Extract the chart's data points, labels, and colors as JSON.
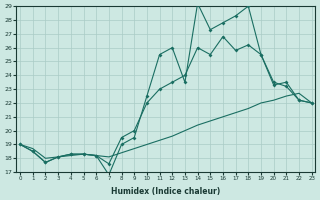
{
  "xlabel": "Humidex (Indice chaleur)",
  "xlim_min": -0.3,
  "xlim_max": 23.3,
  "ylim_min": 17,
  "ylim_max": 29,
  "bg_color": "#cde8e2",
  "line_color": "#1a6e62",
  "grid_color": "#aaccc6",
  "yticks": [
    17,
    18,
    19,
    20,
    21,
    22,
    23,
    24,
    25,
    26,
    27,
    28,
    29
  ],
  "xticks": [
    0,
    1,
    2,
    3,
    4,
    5,
    6,
    7,
    8,
    9,
    10,
    11,
    12,
    13,
    14,
    15,
    16,
    17,
    18,
    19,
    20,
    21,
    22,
    23
  ],
  "line1_x": [
    0,
    1,
    2,
    3,
    4,
    5,
    6,
    7,
    8,
    9,
    10,
    11,
    12,
    13,
    14,
    15,
    16,
    17,
    18,
    19,
    20,
    21,
    22,
    23
  ],
  "line1_y": [
    19.0,
    18.7,
    18.0,
    18.1,
    18.2,
    18.3,
    18.2,
    18.1,
    18.4,
    18.7,
    19.0,
    19.3,
    19.6,
    20.0,
    20.4,
    20.7,
    21.0,
    21.3,
    21.6,
    22.0,
    22.2,
    22.5,
    22.7,
    22.0
  ],
  "line2_x": [
    0,
    1,
    2,
    3,
    4,
    5,
    6,
    7,
    8,
    9,
    10,
    11,
    12,
    13,
    14,
    15,
    16,
    17,
    18,
    19,
    20,
    21,
    22,
    23
  ],
  "line2_y": [
    19.0,
    18.5,
    17.7,
    18.1,
    18.3,
    18.3,
    18.2,
    17.6,
    19.5,
    20.0,
    22.0,
    23.0,
    23.5,
    24.0,
    26.0,
    25.5,
    26.8,
    25.8,
    26.2,
    25.5,
    23.3,
    23.5,
    22.2,
    22.0
  ],
  "line3_x": [
    0,
    1,
    2,
    3,
    4,
    5,
    6,
    7,
    8,
    9,
    10,
    11,
    12,
    13,
    14,
    15,
    16,
    17,
    18,
    19,
    20,
    21,
    22,
    23
  ],
  "line3_y": [
    19.0,
    18.5,
    17.7,
    18.1,
    18.3,
    18.3,
    18.2,
    16.8,
    19.0,
    19.5,
    22.5,
    25.5,
    26.0,
    23.5,
    29.2,
    27.3,
    27.8,
    28.3,
    29.0,
    25.5,
    23.5,
    23.2,
    22.2,
    22.0
  ]
}
